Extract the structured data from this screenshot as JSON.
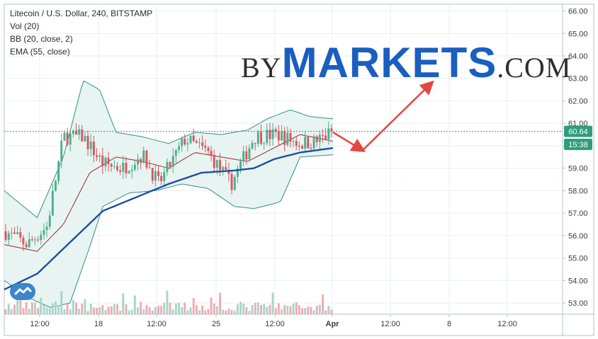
{
  "legend": {
    "title": "Litecoin / U.S. Dollar, 240, BITSTAMP",
    "vol": "Vol (20)",
    "bb": "BB (20, close, 2)",
    "ema": "EMA (55, close)"
  },
  "logo": {
    "by": "BY",
    "markets": "MARKETS",
    "com": ".COM"
  },
  "price_badge": {
    "value": "60.64",
    "countdown": "15:38",
    "color": "#2e9e7c"
  },
  "colors": {
    "up": "#4caf8d",
    "down": "#e0525e",
    "ema": "#1c4ea6",
    "bb_basis": "#9c2530",
    "bb_band": "#2f8f86",
    "bb_fill": "#e8f4f1",
    "arrow": "#e4473f",
    "grid": "#eaeef2"
  },
  "chart_data": {
    "type": "candlestick",
    "title": "Litecoin / U.S. Dollar, 240, BITSTAMP",
    "y_axis": {
      "ticks": [
        "53.00",
        "54.00",
        "55.00",
        "56.00",
        "57.00",
        "58.00",
        "59.00",
        "60.00",
        "61.00",
        "62.00",
        "63.00",
        "64.00",
        "65.00",
        "66.00"
      ],
      "ylim": [
        52.5,
        66.3
      ],
      "position": "right"
    },
    "x_axis": {
      "ticks": [
        "12:00",
        "18",
        "12:00",
        "25",
        "12:00",
        "Apr",
        "12:00",
        "8",
        "12:00"
      ],
      "bold_ticks": [
        "Apr"
      ]
    },
    "last_price": 60.64,
    "grid": true,
    "approx_series": {
      "price_path": [
        {
          "x": 0,
          "y": 56.2
        },
        {
          "x": 0.07,
          "y": 55.6
        },
        {
          "x": 0.13,
          "y": 56.4
        },
        {
          "x": 0.18,
          "y": 60.4
        },
        {
          "x": 0.24,
          "y": 60.4
        },
        {
          "x": 0.3,
          "y": 59.2
        },
        {
          "x": 0.36,
          "y": 59.0
        },
        {
          "x": 0.42,
          "y": 59.6
        },
        {
          "x": 0.47,
          "y": 58.3
        },
        {
          "x": 0.55,
          "y": 60.3
        },
        {
          "x": 0.62,
          "y": 59.7
        },
        {
          "x": 0.69,
          "y": 58.3
        },
        {
          "x": 0.76,
          "y": 60.4
        },
        {
          "x": 0.83,
          "y": 60.5
        },
        {
          "x": 0.9,
          "y": 60.1
        },
        {
          "x": 0.95,
          "y": 60.2
        },
        {
          "x": 1.0,
          "y": 60.64
        }
      ],
      "ema55": [
        {
          "x": 0,
          "y": 53.6
        },
        {
          "x": 0.1,
          "y": 54.3
        },
        {
          "x": 0.2,
          "y": 55.7
        },
        {
          "x": 0.3,
          "y": 57.1
        },
        {
          "x": 0.4,
          "y": 57.7
        },
        {
          "x": 0.5,
          "y": 58.3
        },
        {
          "x": 0.6,
          "y": 58.8
        },
        {
          "x": 0.7,
          "y": 58.9
        },
        {
          "x": 0.76,
          "y": 59.0
        },
        {
          "x": 0.82,
          "y": 59.4
        },
        {
          "x": 0.9,
          "y": 59.7
        },
        {
          "x": 1.0,
          "y": 59.9
        }
      ],
      "bb_basis": [
        {
          "x": 0,
          "y": 55.6
        },
        {
          "x": 0.1,
          "y": 55.3
        },
        {
          "x": 0.18,
          "y": 56.5
        },
        {
          "x": 0.26,
          "y": 58.8
        },
        {
          "x": 0.34,
          "y": 59.5
        },
        {
          "x": 0.42,
          "y": 59.3
        },
        {
          "x": 0.5,
          "y": 59.0
        },
        {
          "x": 0.58,
          "y": 59.7
        },
        {
          "x": 0.66,
          "y": 59.5
        },
        {
          "x": 0.74,
          "y": 59.3
        },
        {
          "x": 0.82,
          "y": 59.9
        },
        {
          "x": 0.9,
          "y": 60.5
        },
        {
          "x": 1.0,
          "y": 60.2
        }
      ],
      "bb_upper": [
        {
          "x": 0,
          "y": 58.0
        },
        {
          "x": 0.1,
          "y": 56.8
        },
        {
          "x": 0.18,
          "y": 59.5
        },
        {
          "x": 0.24,
          "y": 62.9
        },
        {
          "x": 0.29,
          "y": 62.5
        },
        {
          "x": 0.34,
          "y": 60.6
        },
        {
          "x": 0.42,
          "y": 60.4
        },
        {
          "x": 0.5,
          "y": 60.1
        },
        {
          "x": 0.58,
          "y": 60.6
        },
        {
          "x": 0.66,
          "y": 60.5
        },
        {
          "x": 0.74,
          "y": 60.7
        },
        {
          "x": 0.8,
          "y": 61.2
        },
        {
          "x": 0.87,
          "y": 61.6
        },
        {
          "x": 0.93,
          "y": 61.3
        },
        {
          "x": 1.0,
          "y": 61.2
        }
      ],
      "bb_lower": [
        {
          "x": 0,
          "y": 54.0
        },
        {
          "x": 0.08,
          "y": 53.2
        },
        {
          "x": 0.14,
          "y": 52.8
        },
        {
          "x": 0.2,
          "y": 53.0
        },
        {
          "x": 0.26,
          "y": 55.5
        },
        {
          "x": 0.3,
          "y": 57.3
        },
        {
          "x": 0.38,
          "y": 57.9
        },
        {
          "x": 0.46,
          "y": 58.0
        },
        {
          "x": 0.54,
          "y": 58.3
        },
        {
          "x": 0.62,
          "y": 58.1
        },
        {
          "x": 0.7,
          "y": 57.3
        },
        {
          "x": 0.76,
          "y": 57.2
        },
        {
          "x": 0.84,
          "y": 57.5
        },
        {
          "x": 0.9,
          "y": 59.5
        },
        {
          "x": 1.0,
          "y": 59.6
        }
      ]
    },
    "forecast_arrows": [
      {
        "from": {
          "x": 1.0,
          "y": 60.6
        },
        "to": {
          "x": 1.09,
          "y": 59.8
        }
      },
      {
        "from": {
          "x": 1.09,
          "y": 59.8
        },
        "to": {
          "x": 1.3,
          "y": 62.8
        }
      }
    ]
  }
}
